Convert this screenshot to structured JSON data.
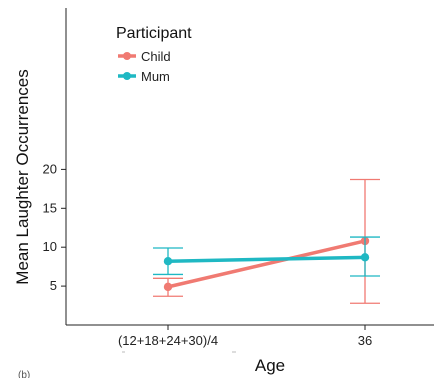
{
  "chart_data": {
    "type": "line",
    "title": "",
    "xlabel": "Age",
    "ylabel": "Mean Laughter Occurrences",
    "categories": [
      "(12+18+24+30)/4",
      "36"
    ],
    "ylim": [
      0,
      20
    ],
    "yticks": [
      5,
      10,
      15,
      20
    ],
    "grid": false,
    "legend": {
      "title": "Participant",
      "position": "top-left"
    },
    "series": [
      {
        "name": "Child",
        "color": "#F07A72",
        "values": [
          4.9,
          10.8
        ],
        "error_low": [
          3.7,
          2.8
        ],
        "error_high": [
          6.0,
          18.7
        ]
      },
      {
        "name": "Mum",
        "color": "#1FB8C3",
        "values": [
          8.2,
          8.7
        ],
        "error_low": [
          6.5,
          6.3
        ],
        "error_high": [
          9.9,
          11.3
        ]
      }
    ]
  },
  "footer_text": "(b)"
}
